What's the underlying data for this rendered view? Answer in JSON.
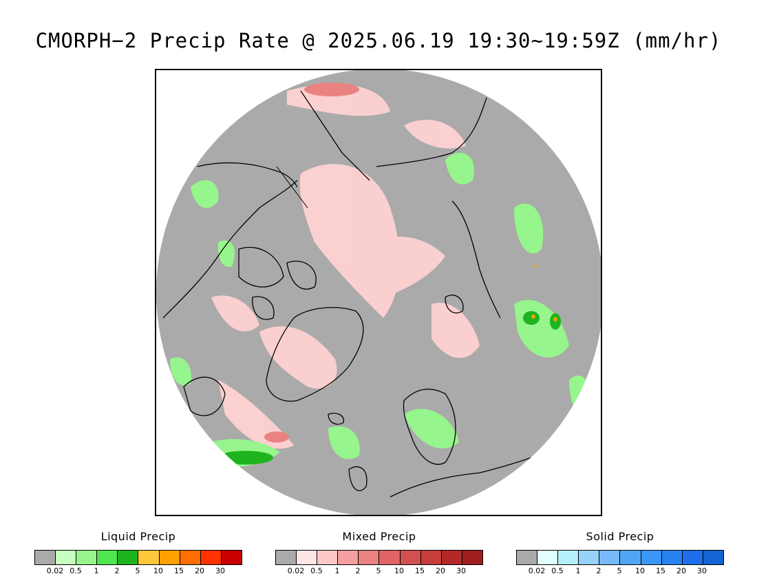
{
  "title": "CMORPH−2 Precip Rate @ 2025.06.19 19:30~19:59Z (mm/hr)",
  "map": {
    "projection": "north-polar-stereographic",
    "no_precip_color": "#aaaaaa",
    "background_color": "#ffffff",
    "coastline_color": "#000000"
  },
  "legends": [
    {
      "id": "liquid",
      "title": "Liquid Precip",
      "colors": [
        "#aaaaaa",
        "#c8ffc0",
        "#96f58c",
        "#50e650",
        "#1eb41e",
        "#ffc83c",
        "#ffa000",
        "#ff6e00",
        "#ff3200",
        "#c80000"
      ],
      "ticks": [
        "0.02",
        "0.5",
        "1",
        "2",
        "5",
        "10",
        "15",
        "20",
        "30"
      ]
    },
    {
      "id": "mixed",
      "title": "Mixed Precip",
      "colors": [
        "#aaaaaa",
        "#ffe6e6",
        "#ffc8c8",
        "#f5a0a0",
        "#eb8282",
        "#e16464",
        "#d25050",
        "#c83c3c",
        "#b42828",
        "#a01e1e"
      ],
      "ticks": [
        "0.02",
        "0.5",
        "1",
        "2",
        "5",
        "10",
        "15",
        "20",
        "30"
      ]
    },
    {
      "id": "solid",
      "title": "Solid Precip",
      "colors": [
        "#aaaaaa",
        "#e1ffff",
        "#b4f0fa",
        "#96d2fa",
        "#78b9fa",
        "#50a5f5",
        "#3c96f5",
        "#2882f0",
        "#1e6eeb",
        "#1464d2"
      ],
      "ticks": [
        "0.02",
        "0.5",
        "1",
        "2",
        "5",
        "10",
        "15",
        "20",
        "30"
      ]
    }
  ]
}
